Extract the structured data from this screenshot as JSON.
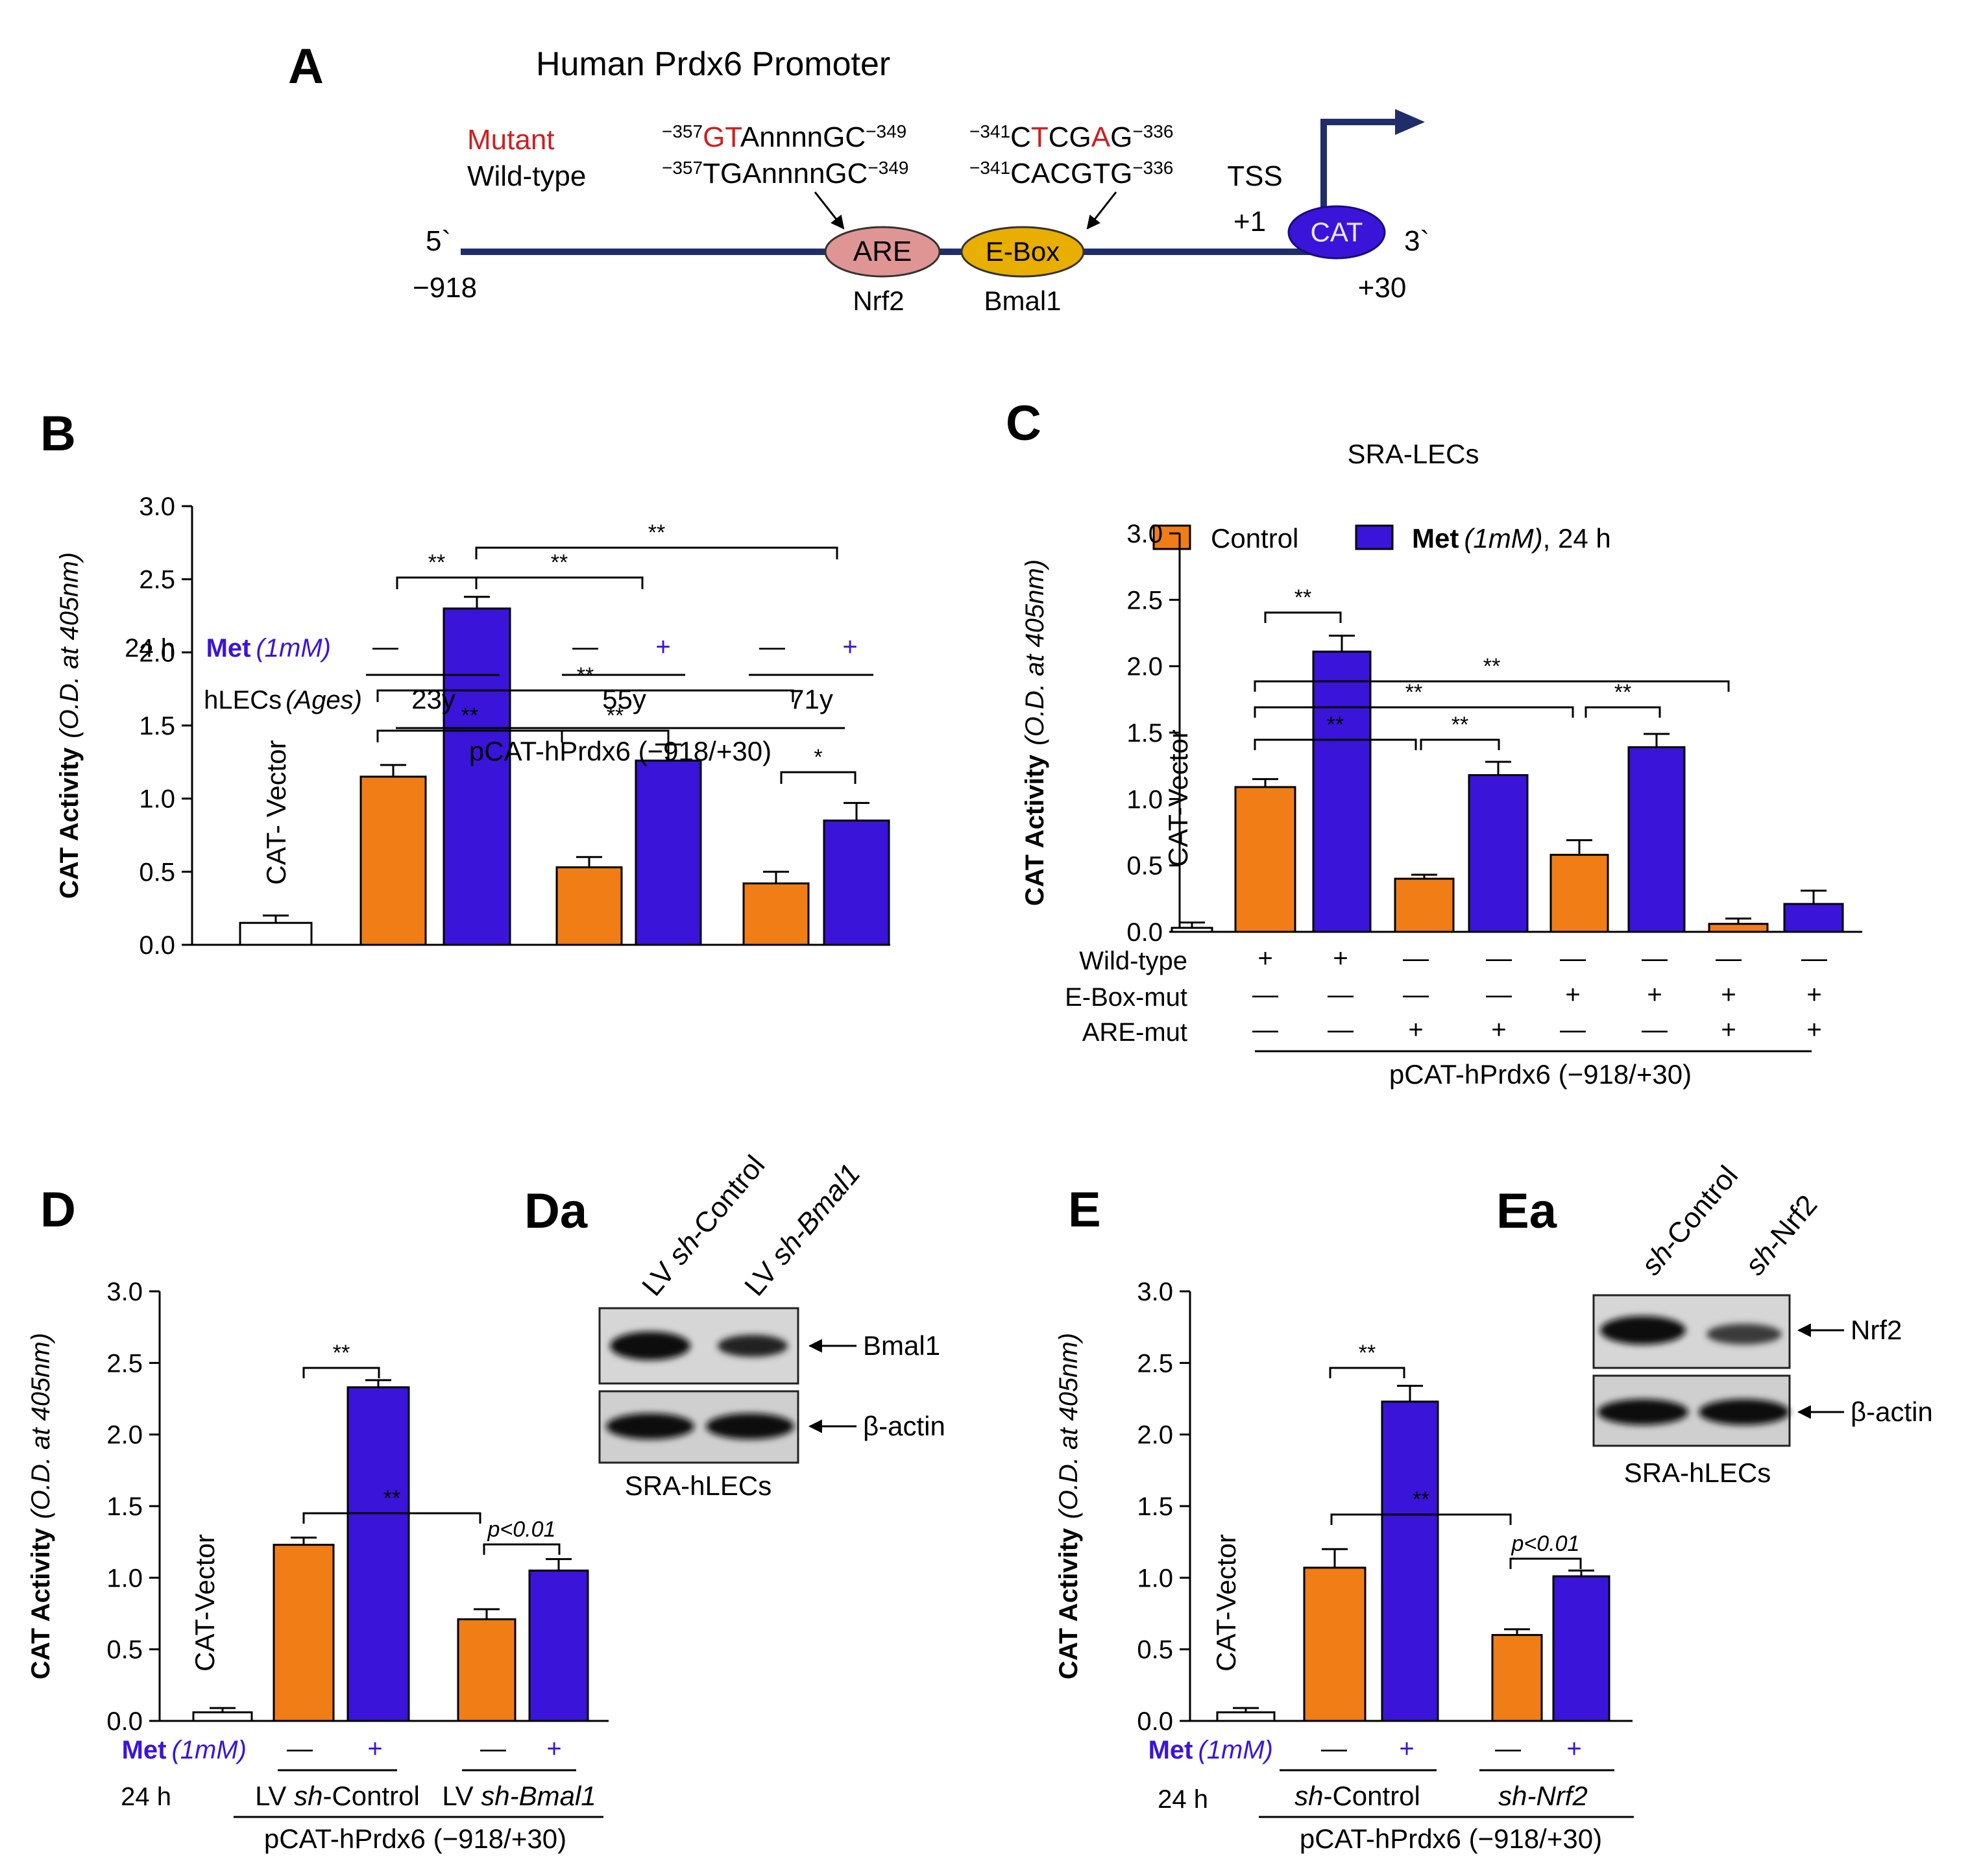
{
  "colors": {
    "control": "#f07d16",
    "met": "#3b14d9",
    "vector": "#ffffff",
    "promoter_line": "#1f2d6b",
    "are": "#e09595",
    "ebox": "#e8ae00",
    "cat": "#3b14d9",
    "mutant": "#cc2020"
  },
  "panelA": {
    "letter": "A",
    "title": "Human Prdx6 Promoter",
    "mutant_label": "Mutant",
    "wildtype_label": "Wild-type",
    "are_mut_pre": "GT",
    "are_mut_post": "AnnnnGC",
    "are_wt_seq": "TGAnnnnGC",
    "are_start": "−357",
    "are_end": "−349",
    "ebox_mut_a": "C",
    "ebox_mut_b": "T",
    "ebox_mut_c": "CG",
    "ebox_mut_d": "A",
    "ebox_mut_e": "G",
    "ebox_wt_seq": "CACGTG",
    "ebox_start": "−341",
    "ebox_end": "−336",
    "are": "ARE",
    "ebox": "E-Box",
    "cat": "CAT",
    "nrf2": "Nrf2",
    "bmal1": "Bmal1",
    "tss": "TSS",
    "plus1": "+1",
    "five": "5`",
    "three": "3`",
    "start": "−918",
    "end": "+30"
  },
  "chart_data": [
    {
      "panel": "B",
      "type": "bar",
      "ylabel": "CAT Activity",
      "ylabel_italic": "(O.D. at 405nm)",
      "ylim": [
        0,
        3.0
      ],
      "yticks": [
        "0.0",
        "0.5",
        "1.0",
        "1.5",
        "2.0",
        "2.5",
        "3.0"
      ],
      "bars": [
        {
          "group": "CAT- Vector",
          "condition": "vector",
          "value": 0.15,
          "err": 0.05
        },
        {
          "group": "23y",
          "condition": "control",
          "value": 1.15,
          "err": 0.08
        },
        {
          "group": "23y",
          "condition": "met",
          "value": 2.3,
          "err": 0.08
        },
        {
          "group": "55y",
          "condition": "control",
          "value": 0.53,
          "err": 0.07
        },
        {
          "group": "55y",
          "condition": "met",
          "value": 1.26,
          "err": 0.11
        },
        {
          "group": "71y",
          "condition": "control",
          "value": 0.42,
          "err": 0.08
        },
        {
          "group": "71y",
          "condition": "met",
          "value": 0.85,
          "err": 0.12
        }
      ],
      "vector_label": "CAT- Vector",
      "row_24h": "24 h",
      "met_label": "Met",
      "met_dose": "(1mM)",
      "minus": "—",
      "plus": "+",
      "ages_label": "hLECs",
      "ages_italic": "(Ages)",
      "groups": [
        "23y",
        "55y",
        "71y"
      ],
      "footer": "pCAT-hPrdx6 (−918/+30)",
      "sig": [
        "**",
        "**",
        "**",
        "**",
        "**",
        "**",
        "*"
      ]
    },
    {
      "panel": "C",
      "type": "bar",
      "title": "SRA-LECs",
      "ylabel": "CAT Activity",
      "ylabel_italic": "(O.D. at 405nm)",
      "ylim": [
        0,
        3.0
      ],
      "yticks": [
        "0.0",
        "0.5",
        "1.0",
        "1.5",
        "2.0",
        "2.5",
        "3.0"
      ],
      "legend": {
        "control": "Control",
        "met_bold": "Met",
        "met_dose": "(1mM)",
        "met_time": ", 24 h"
      },
      "bars": [
        {
          "group": "CAT-Vector",
          "condition": "vector",
          "value": 0.03,
          "err": 0.04
        },
        {
          "group": "WT",
          "condition": "control",
          "value": 1.09,
          "err": 0.06
        },
        {
          "group": "WT",
          "condition": "met",
          "value": 2.11,
          "err": 0.12
        },
        {
          "group": "ARE-mut",
          "condition": "control",
          "value": 0.4,
          "err": 0.03
        },
        {
          "group": "ARE-mut",
          "condition": "met",
          "value": 1.18,
          "err": 0.1
        },
        {
          "group": "E-Box-mut",
          "condition": "control",
          "value": 0.58,
          "err": 0.11
        },
        {
          "group": "E-Box-mut",
          "condition": "met",
          "value": 1.39,
          "err": 0.1
        },
        {
          "group": "Double-mut",
          "condition": "control",
          "value": 0.06,
          "err": 0.04
        },
        {
          "group": "Double-mut",
          "condition": "met",
          "value": 0.21,
          "err": 0.1
        }
      ],
      "vector_label": "CAT-Vector",
      "rows": [
        {
          "label": "Wild-type",
          "marks": [
            "+",
            "+",
            "—",
            "—",
            "—",
            "—",
            "—",
            "—"
          ]
        },
        {
          "label": "E-Box-mut",
          "marks": [
            "—",
            "—",
            "—",
            "—",
            "+",
            "+",
            "+",
            "+"
          ]
        },
        {
          "label": "ARE-mut",
          "marks": [
            "—",
            "—",
            "+",
            "+",
            "—",
            "—",
            "+",
            "+"
          ]
        }
      ],
      "footer": "pCAT-hPrdx6 (−918/+30)",
      "sig": [
        "**",
        "**",
        "**",
        "**",
        "**",
        "**"
      ]
    },
    {
      "panel": "D",
      "type": "bar",
      "ylabel": "CAT Activity",
      "ylabel_italic": "(O.D. at 405nm)",
      "ylim": [
        0,
        3.0
      ],
      "yticks": [
        "0.0",
        "0.5",
        "1.0",
        "1.5",
        "2.0",
        "2.5",
        "3.0"
      ],
      "bars": [
        {
          "group": "CAT-Vector",
          "condition": "vector",
          "value": 0.06,
          "err": 0.03
        },
        {
          "group": "LV sh-Control",
          "condition": "control",
          "value": 1.23,
          "err": 0.05
        },
        {
          "group": "LV sh-Control",
          "condition": "met",
          "value": 2.33,
          "err": 0.05
        },
        {
          "group": "LV sh-Bmal1",
          "condition": "control",
          "value": 0.71,
          "err": 0.07
        },
        {
          "group": "LV sh-Bmal1",
          "condition": "met",
          "value": 1.05,
          "err": 0.08
        }
      ],
      "vector_label": "CAT-Vector",
      "met_label": "Met",
      "met_dose": "(1mM)",
      "row_24h": "24 h",
      "minus": "—",
      "plus": "+",
      "g1_pre": "LV ",
      "g1_it": "sh",
      "g1_post": "-Control",
      "g2_pre": "LV ",
      "g2_it": "sh-Bmal1",
      "footer": "pCAT-hPrdx6 (−918/+30)",
      "sig": [
        "**",
        "**"
      ],
      "p_label": "p<0.01"
    },
    {
      "panel": "E",
      "type": "bar",
      "ylabel": "CAT Activity",
      "ylabel_italic": "(O.D. at 405nm)",
      "ylim": [
        0,
        3.0
      ],
      "yticks": [
        "0.0",
        "0.5",
        "1.0",
        "1.5",
        "2.0",
        "2.5",
        "3.0"
      ],
      "bars": [
        {
          "group": "CAT-Vector",
          "condition": "vector",
          "value": 0.06,
          "err": 0.03
        },
        {
          "group": "sh-Control",
          "condition": "control",
          "value": 1.07,
          "err": 0.13
        },
        {
          "group": "sh-Control",
          "condition": "met",
          "value": 2.23,
          "err": 0.11
        },
        {
          "group": "sh-Nrf2",
          "condition": "control",
          "value": 0.6,
          "err": 0.04
        },
        {
          "group": "sh-Nrf2",
          "condition": "met",
          "value": 1.01,
          "err": 0.04
        }
      ],
      "vector_label": "CAT-Vector",
      "met_label": "Met",
      "met_dose": "(1mM)",
      "row_24h": "24 h",
      "minus": "—",
      "plus": "+",
      "g1_it": "sh",
      "g1_post": "-Control",
      "g2_it": "sh-Nrf2",
      "footer": "pCAT-hPrdx6 (−918/+30)",
      "sig": [
        "**",
        "**"
      ],
      "p_label": "p<0.01"
    }
  ],
  "blotDa": {
    "letter": "Da",
    "lane1_pre": "LV ",
    "lane1_it": "sh",
    "lane1_post": "-Control",
    "lane2_pre": "LV ",
    "lane2_it": "sh-Bmal1",
    "band1": "Bmal1",
    "band2": "β-actin",
    "cells": "SRA-hLECs"
  },
  "blotEa": {
    "letter": "Ea",
    "lane1_it": "sh",
    "lane1_post": "-Control",
    "lane2_it": "sh",
    "lane2_post": "-Nrf2",
    "band1": "Nrf2",
    "band2": "β-actin",
    "cells": "SRA-hLECs"
  }
}
